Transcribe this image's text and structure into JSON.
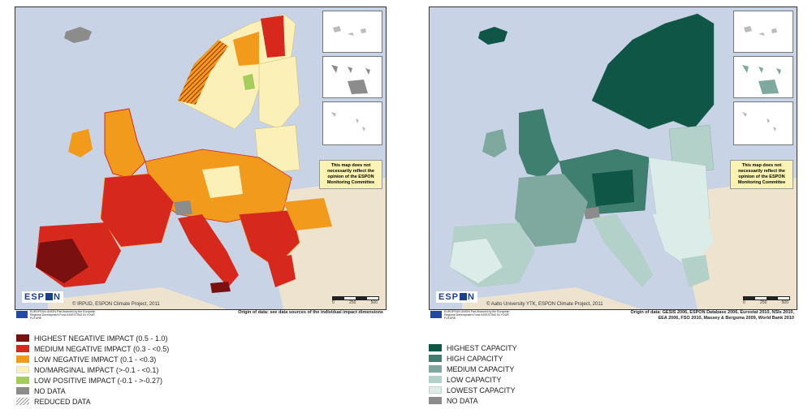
{
  "left_map": {
    "credit": "© IRPUD, ESPON Climate Project, 2011",
    "origin": "Origin of data: see data sources of the individual impact dimensions",
    "disclaimer": "This map does not necessarily reflect the opinion of the ESPON Monitoring Committee",
    "logo": "ESPON",
    "eu_text": "EUROPEAN UNION Part-financed by the European Regional Development Fund INVESTING IN YOUR FUTURE",
    "scale_labels": [
      "0",
      "250",
      "500"
    ],
    "legend": [
      {
        "label": "HIGHEST NEGATIVE IMPACT (0.5 - 1.0)",
        "color": "#7a1010"
      },
      {
        "label": "MEDIUM NEGATIVE IMPACT (0.3 - <0.5)",
        "color": "#d7281e"
      },
      {
        "label": "LOW NEGATIVE IMPACT (0.1 - <0.3)",
        "color": "#f29a1c"
      },
      {
        "label": "NO/MARGINAL IMPACT (>-0.1 - <0.1)",
        "color": "#fbf0b8"
      },
      {
        "label": "LOW POSITIVE IMPACT (-0.1 - >-0.27)",
        "color": "#a6cc5c"
      },
      {
        "label": "NO DATA",
        "color": "#8c8c8c"
      },
      {
        "label": "REDUCED DATA",
        "color": "hatch"
      }
    ]
  },
  "right_map": {
    "credit": "© Aalto University YTK, ESPON Climate Project, 2011",
    "origin_line1": "Origin of data: GESIS 2006, ESPON Database 2006, Eurostat 2010, NSIs 2010,",
    "origin_line2": "EEA 2006, FSO 2010, Massey & Bergsma 2009, World Bank 2010",
    "disclaimer": "This map does not necessarily reflect the opinion of the ESPON Monitoring Committee",
    "logo": "ESPON",
    "eu_text": "EUROPEAN UNION Part-financed by the European Regional Development Fund INVESTING IN YOUR FUTURE",
    "scale_labels": [
      "0",
      "250",
      "500"
    ],
    "legend": [
      {
        "label": "HIGHEST CAPACITY",
        "color": "#0f5647"
      },
      {
        "label": "HIGH CAPACITY",
        "color": "#3e7f70"
      },
      {
        "label": "MEDIUM CAPACITY",
        "color": "#7fa99e"
      },
      {
        "label": "LOW CAPACITY",
        "color": "#b3d0c9"
      },
      {
        "label": "LOWEST CAPACITY",
        "color": "#dcece8"
      },
      {
        "label": "NO DATA",
        "color": "#8c8c8c"
      }
    ]
  }
}
